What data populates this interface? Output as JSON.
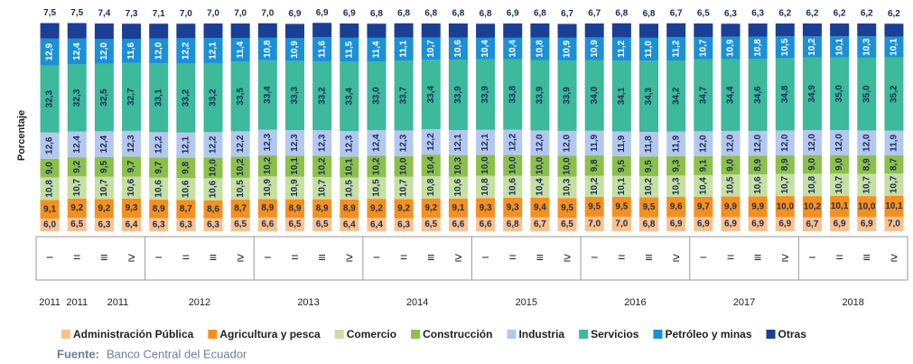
{
  "chart_data": {
    "type": "stacked_bar",
    "y_label": "Porcentaje",
    "categories": [
      "−",
      "=",
      "≡",
      "≥",
      "−",
      "=",
      "≡",
      "≥",
      "−",
      "=",
      "≡",
      "≥",
      "−",
      "=",
      "≡",
      "≥",
      "−",
      "=",
      "≡",
      "≥",
      "−",
      "=",
      "≡",
      "≥",
      "−",
      "=",
      "≡",
      "≥",
      "−",
      "=",
      "≡",
      "≥"
    ],
    "years": [
      "2011",
      "2011",
      "2011",
      null,
      null,
      "2012",
      null,
      null,
      null,
      "2013",
      null,
      null,
      null,
      "2014",
      null,
      null,
      null,
      "2015",
      null,
      null,
      null,
      "2016",
      null,
      null,
      null,
      "2017",
      null,
      null,
      null,
      "2018",
      null,
      null
    ],
    "ylim": [
      0,
      100
    ],
    "series": [
      {
        "name": "Administración Pública",
        "color": "#f9c18e",
        "values": [
          6.0,
          6.5,
          6.3,
          6.4,
          6.3,
          6.3,
          6.3,
          6.5,
          6.6,
          6.5,
          6.5,
          6.4,
          6.4,
          6.3,
          6.5,
          6.6,
          6.6,
          6.8,
          6.7,
          6.5,
          7.0,
          7.0,
          6.8,
          6.9,
          6.9,
          6.9,
          6.9,
          6.9,
          6.7,
          6.9,
          6.9,
          7.0
        ],
        "value_labels": [
          "6,0",
          "6,5",
          "6,3",
          "6,4",
          "6,3",
          "6,3",
          "6,3",
          "6,5",
          "6,6",
          "6,5",
          "6,5",
          "6,4",
          "6,4",
          "6,3",
          "6,5",
          "6,6",
          "6,6",
          "6,8",
          "6,7",
          "6,5",
          "7,0",
          "7,0",
          "6,8",
          "6,9",
          "6,9",
          "6,9",
          "6,9",
          "6,9",
          "6,7",
          "6,9",
          "6,9",
          "7,0"
        ]
      },
      {
        "name": "Agricultura y pesca",
        "color": "#f5901f",
        "values": [
          9.1,
          9.2,
          9.2,
          9.3,
          8.9,
          8.7,
          8.6,
          8.7,
          8.9,
          8.9,
          8.9,
          8.9,
          9.2,
          9.2,
          9.2,
          9.1,
          9.3,
          9.3,
          9.4,
          9.5,
          9.5,
          9.5,
          9.5,
          9.6,
          9.7,
          9.9,
          9.9,
          10.0,
          10.2,
          10.1,
          10.0,
          10.1
        ],
        "value_labels": [
          "9,1",
          "9,2",
          "9,2",
          "9,3",
          "8,9",
          "8,7",
          "8,6",
          "8,7",
          "8,9",
          "8,9",
          "8,9",
          "8,9",
          "9,2",
          "9,2",
          "9,2",
          "9,1",
          "9,3",
          "9,3",
          "9,4",
          "9,5",
          "9,5",
          "9,5",
          "9,5",
          "9,6",
          "9,7",
          "9,9",
          "9,9",
          "10,0",
          "10,2",
          "10,1",
          "10,0",
          "10,1"
        ]
      },
      {
        "name": "Comercio",
        "color": "#c6dfa2",
        "values": [
          10.8,
          10.7,
          10.7,
          10.6,
          10.6,
          10.6,
          10.6,
          10.5,
          10.9,
          10.9,
          10.7,
          10.5,
          10.5,
          10.7,
          10.8,
          10.6,
          10.8,
          10.6,
          10.4,
          10.3,
          10.2,
          10.1,
          10.2,
          10.3,
          10.4,
          10.5,
          10.6,
          10.7,
          10.8,
          10.7,
          10.7,
          10.7
        ],
        "value_labels": [
          "10,8",
          "10,7",
          "10,7",
          "10,6",
          "10,6",
          "10,6",
          "10,6",
          "10,5",
          "10,9",
          "10,9",
          "10,7",
          "10,5",
          "10,5",
          "10,7",
          "10,8",
          "10,6",
          "10,8",
          "10,6",
          "10,4",
          "10,3",
          "10,2",
          "10,1",
          "10,2",
          "10,3",
          "10,4",
          "10,5",
          "10,6",
          "10,7",
          "10,8",
          "10,7",
          "10,7",
          "10,7"
        ]
      },
      {
        "name": "Construcción",
        "color": "#8cc04b",
        "values": [
          9.0,
          9.2,
          9.5,
          9.7,
          9.7,
          9.8,
          10.0,
          10.2,
          10.2,
          10.1,
          10.2,
          10.1,
          10.2,
          10.0,
          10.4,
          10.3,
          10.0,
          10.0,
          10.0,
          10.0,
          9.8,
          9.5,
          9.5,
          9.3,
          9.1,
          9.0,
          8.9,
          8.9,
          9.0,
          9.0,
          8.9,
          8.7
        ],
        "value_labels": [
          "9,0",
          "9,2",
          "9,5",
          "9,7",
          "9,7",
          "9,8",
          "10,0",
          "10,2",
          "10,2",
          "10,1",
          "10,2",
          "10,1",
          "10,2",
          "10,0",
          "10,4",
          "10,3",
          "10,0",
          "10,0",
          "10,0",
          "10,0",
          "9,8",
          "9,5",
          "9,5",
          "9,3",
          "9,1",
          "9,0",
          "8,9",
          "8,9",
          "9,0",
          "9,0",
          "8,9",
          "8,7"
        ]
      },
      {
        "name": "Industria",
        "color": "#b4c8ef",
        "values": [
          12.6,
          12.4,
          12.4,
          12.3,
          12.2,
          12.1,
          12.2,
          12.2,
          12.3,
          12.3,
          12.3,
          12.3,
          12.4,
          12.3,
          12.2,
          12.1,
          12.1,
          12.2,
          12.0,
          12.0,
          11.9,
          11.9,
          11.8,
          11.9,
          12.0,
          12.0,
          12.0,
          12.0,
          12.0,
          12.0,
          12.0,
          11.9
        ],
        "value_labels": [
          "12,6",
          "12,4",
          "12,4",
          "12,3",
          "12,2",
          "12,1",
          "12,2",
          "12,2",
          "12,3",
          "12,3",
          "12,3",
          "12,3",
          "12,4",
          "12,3",
          "12,2",
          "12,1",
          "12,1",
          "12,2",
          "12,0",
          "12,0",
          "11,9",
          "11,9",
          "11,8",
          "11,9",
          "12,0",
          "12,0",
          "12,0",
          "12,0",
          "12,0",
          "12,0",
          "12,0",
          "11,9"
        ]
      },
      {
        "name": "Servicios",
        "color": "#3db99b",
        "values": [
          32.3,
          32.3,
          32.5,
          32.7,
          33.1,
          33.2,
          33.2,
          33.5,
          33.4,
          33.3,
          33.2,
          33.4,
          33.0,
          33.7,
          33.4,
          33.9,
          33.9,
          33.8,
          33.9,
          33.9,
          34.0,
          34.1,
          34.3,
          34.2,
          34.7,
          34.4,
          34.6,
          34.8,
          34.9,
          35.0,
          35.0,
          35.2
        ],
        "value_labels": [
          "32,3",
          "32,3",
          "32,5",
          "32,7",
          "33,1",
          "33,2",
          "33,2",
          "33,5",
          "33,4",
          "33,3",
          "33,2",
          "33,4",
          "33,0",
          "33,7",
          "33,4",
          "33,9",
          "33,9",
          "33,8",
          "33,9",
          "33,9",
          "34,0",
          "34,1",
          "34,3",
          "34,2",
          "34,7",
          "34,4",
          "34,6",
          "34,8",
          "34,9",
          "35,0",
          "35,0",
          "35,2"
        ]
      },
      {
        "name": "Petróleo y minas",
        "color": "#1b90d7",
        "values": [
          12.9,
          12.4,
          12.0,
          11.6,
          12.0,
          12.2,
          12.1,
          11.4,
          10.8,
          10.9,
          11.6,
          11.5,
          11.4,
          11.1,
          10.7,
          10.6,
          10.4,
          10.4,
          10.8,
          10.9,
          10.9,
          11.2,
          11.0,
          11.2,
          10.7,
          10.9,
          10.8,
          10.5,
          10.2,
          10.1,
          10.3,
          10.1
        ],
        "value_labels": [
          "12,9",
          "12,4",
          "12,0",
          "11,6",
          "12,0",
          "12,2",
          "12,1",
          "11,4",
          "10,8",
          "10,9",
          "11,6",
          "11,5",
          "11,4",
          "11,1",
          "10,7",
          "10,6",
          "10,4",
          "10,4",
          "10,8",
          "10,9",
          "10,9",
          "11,2",
          "11,0",
          "11,2",
          "10,7",
          "10,9",
          "10,8",
          "10,5",
          "10,2",
          "10,1",
          "10,3",
          "10,1"
        ]
      },
      {
        "name": "Otras",
        "color": "#1b3f95",
        "values": [
          7.5,
          7.5,
          7.4,
          7.3,
          7.1,
          7.0,
          7.0,
          7.0,
          7.0,
          6.9,
          6.9,
          6.9,
          6.8,
          6.8,
          6.8,
          6.8,
          6.8,
          6.9,
          6.8,
          6.7,
          6.7,
          6.8,
          6.8,
          6.7,
          6.5,
          6.3,
          6.3,
          6.2,
          6.2,
          6.2,
          6.2,
          6.2
        ],
        "value_labels": [
          "7,5",
          "7,5",
          "7,4",
          "7,3",
          "7,1",
          "7,0",
          "7,0",
          "7,0",
          "7,0",
          "6,9",
          "6,9",
          "6,9",
          "6,8",
          "6,8",
          "6,8",
          "6,8",
          "6,8",
          "6,9",
          "6,8",
          "6,7",
          "6,7",
          "6,8",
          "6,8",
          "6,7",
          "6,5",
          "6,3",
          "6,3",
          "6,2",
          "6,2",
          "6,2",
          "6,2",
          "6,2"
        ]
      }
    ],
    "source_label": "Fuente:",
    "source": "Banco Central del Ecuador"
  }
}
